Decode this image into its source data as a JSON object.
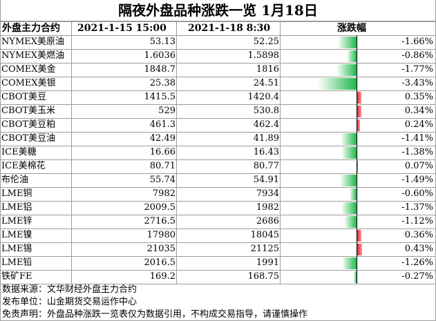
{
  "title": "隔夜外盘品种涨跌一览 1月18日",
  "header": {
    "name": "外盘主力合约",
    "col1": "2021-1-15 15:00",
    "col2": "2021-1-18 8:30",
    "change": "涨跌幅"
  },
  "colors": {
    "up": "#e8252c",
    "down": "#1fb84a",
    "grid": "#9c9c9c"
  },
  "rows": [
    {
      "name": "NYMEX美原油",
      "v1": "53.13",
      "v2": "52.25",
      "pct": "-1.66%"
    },
    {
      "name": "NYMEX美燃油",
      "v1": "1.6036",
      "v2": "1.5898",
      "pct": "-0.86%"
    },
    {
      "name": "COMEX美金",
      "v1": "1848.7",
      "v2": "1816",
      "pct": "-1.77%"
    },
    {
      "name": "COMEX美银",
      "v1": "25.38",
      "v2": "24.51",
      "pct": "-3.43%"
    },
    {
      "name": "CBOT美豆",
      "v1": "1415.5",
      "v2": "1420.4",
      "pct": "0.35%"
    },
    {
      "name": "CBOT美玉米",
      "v1": "529",
      "v2": "530.8",
      "pct": "0.34%"
    },
    {
      "name": "CBOT美豆粕",
      "v1": "461.3",
      "v2": "462.4",
      "pct": "0.24%"
    },
    {
      "name": "CBOT美豆油",
      "v1": "42.49",
      "v2": "41.89",
      "pct": "-1.41%"
    },
    {
      "name": "ICE美糖",
      "v1": "16.66",
      "v2": "16.43",
      "pct": "-1.38%"
    },
    {
      "name": "ICE美棉花",
      "v1": "80.71",
      "v2": "80.77",
      "pct": "0.07%"
    },
    {
      "name": "布伦油",
      "v1": "55.74",
      "v2": "54.91",
      "pct": "-1.49%"
    },
    {
      "name": "LME铜",
      "v1": "7982",
      "v2": "7934",
      "pct": "-0.60%"
    },
    {
      "name": "LME铝",
      "v1": "2009.5",
      "v2": "1982",
      "pct": "-1.37%"
    },
    {
      "name": "LME锌",
      "v1": "2716.5",
      "v2": "2686",
      "pct": "-1.12%"
    },
    {
      "name": "LME镍",
      "v1": "17980",
      "v2": "18045",
      "pct": "0.36%"
    },
    {
      "name": "LME锡",
      "v1": "21035",
      "v2": "21125",
      "pct": "0.43%"
    },
    {
      "name": "LME铅",
      "v1": "2016.5",
      "v2": "1991",
      "pct": "-1.26%"
    },
    {
      "name": "铁矿FE",
      "v1": "169.2",
      "v2": "168.75",
      "pct": "-0.27%"
    }
  ],
  "chart_data": {
    "type": "bar",
    "categories": [
      "NYMEX美原油",
      "NYMEX美燃油",
      "COMEX美金",
      "COMEX美银",
      "CBOT美豆",
      "CBOT美玉米",
      "CBOT美豆粕",
      "CBOT美豆油",
      "ICE美糖",
      "ICE美棉花",
      "布伦油",
      "LME铜",
      "LME铝",
      "LME锌",
      "LME镍",
      "LME锡",
      "LME铅",
      "铁矿FE"
    ],
    "values": [
      -1.66,
      -0.86,
      -1.77,
      -3.43,
      0.35,
      0.34,
      0.24,
      -1.41,
      -1.38,
      0.07,
      -1.49,
      -0.6,
      -1.37,
      -1.12,
      0.36,
      0.43,
      -1.26,
      -0.27
    ],
    "unit": "%",
    "range": [
      -3.43,
      0.43
    ]
  },
  "footer": [
    "数据来源：文华财经外盘主力合约",
    "发布单位：山金期货交易运作中心",
    "免责声明：外盘品种涨跌一览表仅为数据引用，不构成交易指导，请谨慎操作"
  ]
}
